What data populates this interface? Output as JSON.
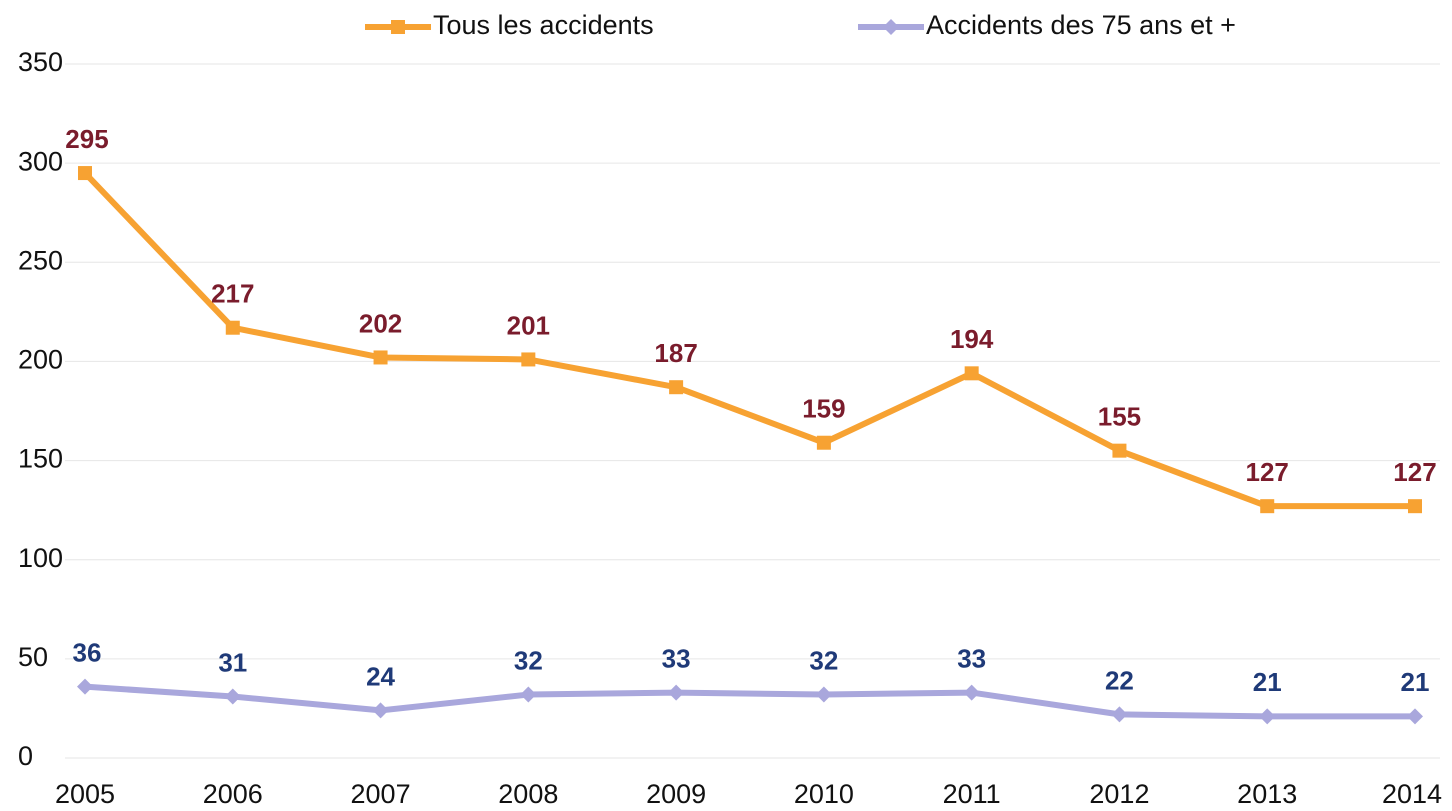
{
  "chart_data": {
    "type": "line",
    "categories": [
      "2005",
      "2006",
      "2007",
      "2008",
      "2009",
      "2010",
      "2011",
      "2012",
      "2013",
      "2014"
    ],
    "series": [
      {
        "name": "Tous les accidents",
        "color": "#f7a232",
        "label_color": "#7a1c2c",
        "values": [
          295,
          217,
          202,
          201,
          187,
          159,
          194,
          155,
          127,
          127
        ]
      },
      {
        "name": "Accidents des 75 ans et +",
        "color": "#a9a7dc",
        "label_color": "#1f3a78",
        "values": [
          36,
          31,
          24,
          32,
          33,
          32,
          33,
          22,
          21,
          21
        ]
      }
    ],
    "ylim": [
      0,
      350
    ],
    "yticks": [
      0,
      50,
      100,
      150,
      200,
      250,
      300,
      350
    ],
    "grid": true,
    "legend": "top"
  }
}
